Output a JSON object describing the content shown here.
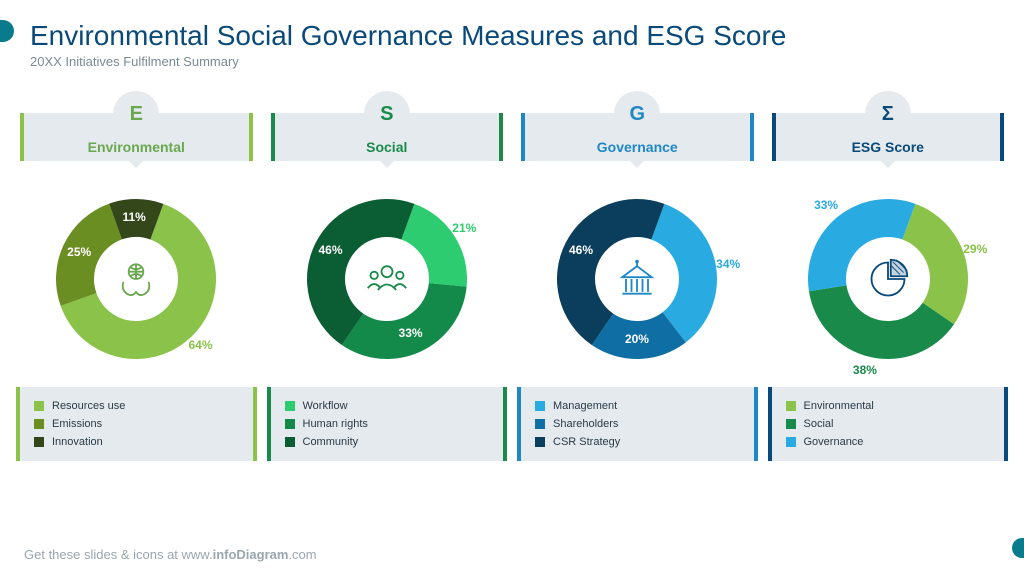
{
  "title": "Environmental Social Governance Measures and ESG Score",
  "subtitle": "20XX Initiatives Fulfilment Summary",
  "footer_prefix": "Get these slides & icons at www.",
  "footer_bold": "infoDiagram",
  "footer_suffix": ".com",
  "columns": [
    {
      "letter": "E",
      "label": "Environmental",
      "text_color": "#6aa84f",
      "accent_left": "#8bc34a",
      "accent_right": "#8bc34a",
      "icon": "env",
      "icon_color": "#6aa84f",
      "segments": [
        {
          "value": 64,
          "color": "#8bc34a",
          "label_inside": false,
          "label_color": "#8bc34a"
        },
        {
          "value": 25,
          "color": "#6b8e23",
          "label_inside": true,
          "label_color": "#ffffff"
        },
        {
          "value": 11,
          "color": "#33471a",
          "label_inside": true,
          "label_color": "#ffffff"
        }
      ],
      "legend": [
        {
          "label": "Resources use",
          "color": "#8bc34a"
        },
        {
          "label": "Emissions",
          "color": "#6b8e23"
        },
        {
          "label": "Innovation",
          "color": "#33471a"
        }
      ]
    },
    {
      "letter": "S",
      "label": "Social",
      "text_color": "#1a8a4a",
      "accent_left": "#1a8a4a",
      "accent_right": "#1a8a4a",
      "icon": "people",
      "icon_color": "#1a8a4a",
      "segments": [
        {
          "value": 21,
          "color": "#2ecc71",
          "label_inside": false,
          "label_color": "#2ecc71"
        },
        {
          "value": 33,
          "color": "#138a4a",
          "label_inside": true,
          "label_color": "#ffffff"
        },
        {
          "value": 46,
          "color": "#0b5d34",
          "label_inside": true,
          "label_color": "#ffffff"
        }
      ],
      "legend": [
        {
          "label": "Workflow",
          "color": "#2ecc71"
        },
        {
          "label": "Human rights",
          "color": "#138a4a"
        },
        {
          "label": "Community",
          "color": "#0b5d34"
        }
      ]
    },
    {
      "letter": "G",
      "label": "Governance",
      "text_color": "#1e88c7",
      "accent_left": "#1e88c7",
      "accent_right": "#1e88c7",
      "icon": "gov",
      "icon_color": "#1e88c7",
      "segments": [
        {
          "value": 34,
          "color": "#29abe2",
          "label_inside": false,
          "label_color": "#29abe2"
        },
        {
          "value": 20,
          "color": "#0f6ea3",
          "label_inside": true,
          "label_color": "#ffffff"
        },
        {
          "value": 46,
          "color": "#0a3e5c",
          "label_inside": true,
          "label_color": "#ffffff"
        }
      ],
      "legend": [
        {
          "label": "Management",
          "color": "#29abe2"
        },
        {
          "label": "Shareholders",
          "color": "#0f6ea3"
        },
        {
          "label": "CSR Strategy",
          "color": "#0a3e5c"
        }
      ]
    },
    {
      "letter": "Σ",
      "label": "ESG Score",
      "text_color": "#0a4a7a",
      "accent_left": "#0a4a7a",
      "accent_right": "#0a4a7a",
      "icon": "pie",
      "icon_color": "#0a4a7a",
      "segments": [
        {
          "value": 29,
          "color": "#8bc34a",
          "label_inside": false,
          "label_color": "#8bc34a"
        },
        {
          "value": 38,
          "color": "#1a8a4a",
          "label_inside": false,
          "label_color": "#1a8a4a"
        },
        {
          "value": 33,
          "color": "#29abe2",
          "label_inside": false,
          "label_color": "#29abe2"
        }
      ],
      "legend": [
        {
          "label": "Environmental",
          "color": "#8bc34a"
        },
        {
          "label": "Social",
          "color": "#1a8a4a"
        },
        {
          "label": "Governance",
          "color": "#29abe2"
        }
      ]
    }
  ],
  "donut": {
    "start_angle_deg": 20,
    "outer_r": 80,
    "inner_r": 42,
    "label_r_inside": 61,
    "label_r_outside": 94
  }
}
